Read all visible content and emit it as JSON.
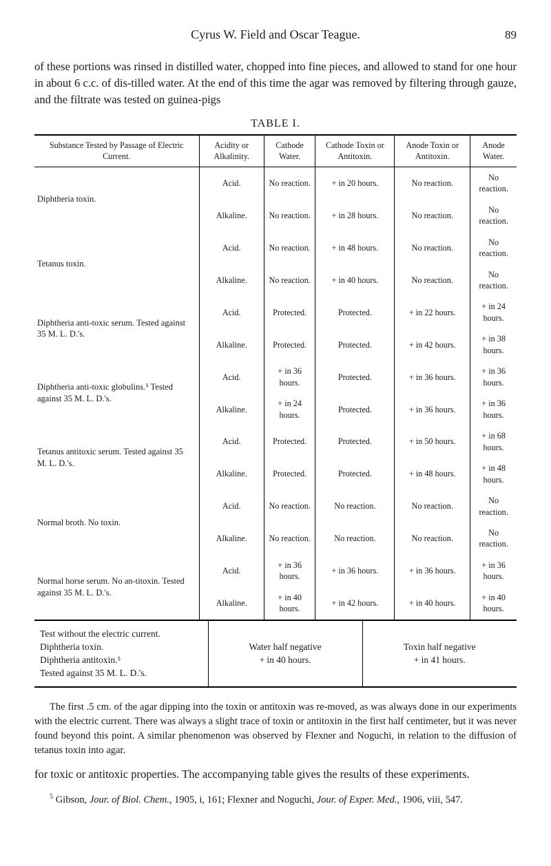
{
  "header": {
    "authors": "Cyrus W. Field and Oscar Teague.",
    "page_number": "89"
  },
  "intro_paragraph": "of these portions was rinsed in distilled water, chopped into fine pieces, and allowed to stand for one hour in about 6 c.c. of dis-tilled water. At the end of this time the agar was removed by filtering through gauze, and the filtrate was tested on guinea-pigs",
  "table_caption": "TABLE I.",
  "table1": {
    "columns": [
      "Substance Tested by Passage of Electric Current.",
      "Acidity or Alkalinity.",
      "Cathode Water.",
      "Cathode Toxin or Antitoxin.",
      "Anode Toxin or Antitoxin.",
      "Anode Water."
    ],
    "rows": [
      {
        "substance": "Diphtheria toxin.",
        "pairs": [
          [
            "Acid.",
            "No reaction.",
            "+ in 20 hours.",
            "No reaction.",
            "No reaction."
          ],
          [
            "Alkaline.",
            "No reaction.",
            "+ in 28 hours.",
            "No reaction.",
            "No reaction."
          ]
        ]
      },
      {
        "substance": "Tetanus toxin.",
        "pairs": [
          [
            "Acid.",
            "No reaction.",
            "+ in 48 hours.",
            "No reaction.",
            "No reaction."
          ],
          [
            "Alkaline.",
            "No reaction.",
            "+ in 40 hours.",
            "No reaction.",
            "No reaction."
          ]
        ]
      },
      {
        "substance": "Diphtheria anti-toxic serum. Tested against 35 M. L. D.'s.",
        "pairs": [
          [
            "Acid.",
            "Protected.",
            "Protected.",
            "+ in 22 hours.",
            "+ in 24 hours."
          ],
          [
            "Alkaline.",
            "Protected.",
            "Protected.",
            "+ in 42 hours.",
            "+ in 38 hours."
          ]
        ]
      },
      {
        "substance": "Diphtheria anti-toxic globulins.⁵ Tested against 35 M. L. D.'s.",
        "pairs": [
          [
            "Acid.",
            "+ in 36 hours.",
            "Protected.",
            "+ in 36 hours.",
            "+ in 36 hours."
          ],
          [
            "Alkaline.",
            "+ in 24 hours.",
            "Protected.",
            "+ in 36 hours.",
            "+ in 36 hours."
          ]
        ]
      },
      {
        "substance": "Tetanus antitoxic serum. Tested against 35 M. L. D.'s.",
        "pairs": [
          [
            "Acid.",
            "Protected.",
            "Protected.",
            "+ in 50 hours.",
            "+ in 68 hours."
          ],
          [
            "Alkaline.",
            "Protected.",
            "Protected.",
            "+ in 48 hours.",
            "+ in 48 hours."
          ]
        ]
      },
      {
        "substance": "Normal broth. No toxin.",
        "pairs": [
          [
            "Acid.",
            "No reaction.",
            "No reaction.",
            "No reaction.",
            "No reaction."
          ],
          [
            "Alkaline.",
            "No reaction.",
            "No reaction.",
            "No reaction.",
            "No reaction."
          ]
        ]
      },
      {
        "substance": "Normal horse serum. No an-titoxin. Tested against 35 M. L. D.'s.",
        "pairs": [
          [
            "Acid.",
            "+ in 36 hours.",
            "+ in 36 hours.",
            "+ in 36 hours.",
            "+ in 36 hours."
          ],
          [
            "Alkaline.",
            "+ in 40 hours.",
            "+ in 42 hours.",
            "+ in 40 hours.",
            "+ in 40 hours."
          ]
        ]
      }
    ]
  },
  "table2": {
    "left_lines": [
      "Test without the electric current.",
      "Diphtheria toxin.",
      "Diphtheria antitoxin.⁵",
      "Tested against 35 M. L. D.'s."
    ],
    "mid_lines": [
      "Water half negative",
      "+ in 40 hours."
    ],
    "right_lines": [
      "Toxin half negative",
      "+ in 41 hours."
    ]
  },
  "footnote": "The first .5 cm. of the agar dipping into the toxin or antitoxin was re-moved, as was always done in our experiments with the electric current. There was always a slight trace of toxin or antitoxin in the first half centimeter, but it was never found beyond this point. A similar phenomenon was observed by Flexner and Noguchi, in relation to the diffusion of tetanus toxin into agar.",
  "closing_paragraph": "for toxic or antitoxic properties.  The accompanying table gives the results of these experiments.",
  "reference": {
    "sup": "5",
    "text_before": " Gibson, ",
    "ital1": "Jour. of Biol. Chem.,",
    "mid": " 1905, i, 161; Flexner and Noguchi, ",
    "ital2": "Jour. of Exper. Med.,",
    "after": " 1906, viii, 547."
  }
}
